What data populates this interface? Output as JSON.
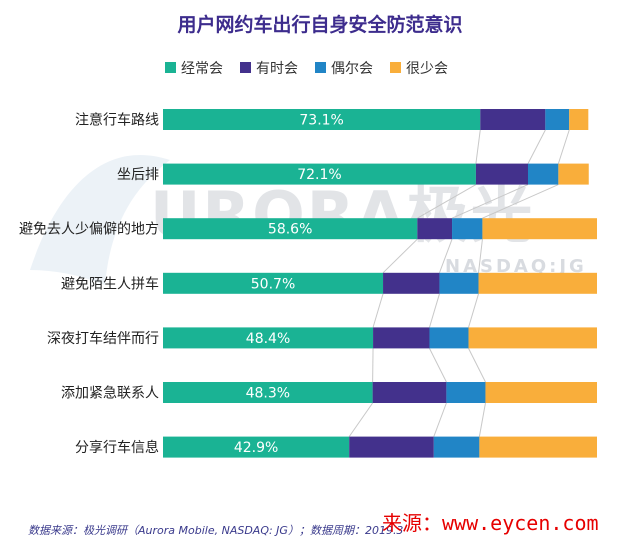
{
  "chart_data": {
    "type": "bar",
    "orientation": "horizontal",
    "stacked": true,
    "normalized": true,
    "title": "用户网约车出行自身安全防范意识",
    "categories": [
      "注意行车路线",
      "坐后排",
      "避免去人少偏僻的地方",
      "避免陌生人拼车",
      "深夜打车结伴而行",
      "添加紧急联系人",
      "分享行车信息"
    ],
    "series": [
      {
        "name": "经常会",
        "color": "#1ab394",
        "values": [
          73.1,
          72.1,
          58.6,
          50.7,
          48.4,
          48.3,
          42.9
        ],
        "labels": [
          "73.1%",
          "72.1%",
          "58.6%",
          "50.7%",
          "48.4%",
          "48.3%",
          "42.9%"
        ]
      },
      {
        "name": "有时会",
        "color": "#43318c",
        "values": [
          15.0,
          12.0,
          8.0,
          13.0,
          13.0,
          17.0,
          19.5
        ]
      },
      {
        "name": "偶尔会",
        "color": "#2185c6",
        "values": [
          5.5,
          7.0,
          7.0,
          9.0,
          9.0,
          9.0,
          10.5
        ]
      },
      {
        "name": "很少会",
        "color": "#f9ae3b",
        "values": [
          4.4,
          7.0,
          26.4,
          27.3,
          29.6,
          25.7,
          27.1
        ]
      }
    ],
    "xlim": [
      0,
      100
    ],
    "legend_position": "top",
    "grid": false
  },
  "watermark": {
    "text": "URORA极光",
    "sub": "NASDAQ:JG"
  },
  "source_text": "数据来源：极光调研（Aurora Mobile, NASDAQ: JG）；数据周期：2019.3",
  "credit_text": "来源：www.eycen.com",
  "colors": {
    "title": "#3d2c8d",
    "connector": "#c8c8c8"
  }
}
